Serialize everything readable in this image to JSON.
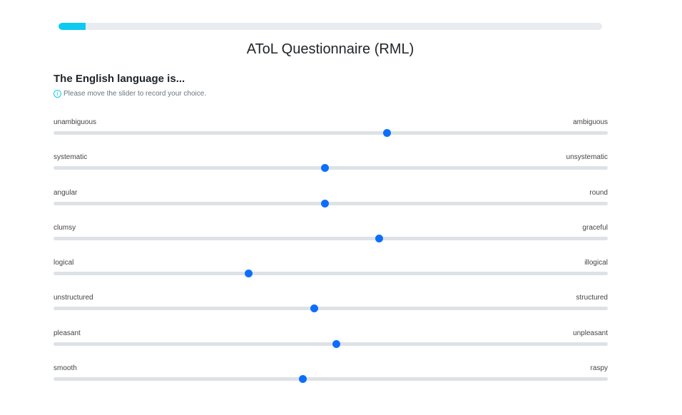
{
  "progress": {
    "value": 0.05,
    "color": "#0dcaf0"
  },
  "page_title": "AToL Questionnaire (RML)",
  "question": "The English language is...",
  "hint": {
    "icon": "info-icon",
    "text": "Please move the slider to record your choice."
  },
  "sliders": [
    {
      "left": "unambiguous",
      "right": "ambiguous",
      "value": 0.602
    },
    {
      "left": "systematic",
      "right": "unsystematic",
      "value": 0.49
    },
    {
      "left": "angular",
      "right": "round",
      "value": 0.49
    },
    {
      "left": "clumsy",
      "right": "graceful",
      "value": 0.587
    },
    {
      "left": "logical",
      "right": "illogical",
      "value": 0.352
    },
    {
      "left": "unstructured",
      "right": "structured",
      "value": 0.47
    },
    {
      "left": "pleasant",
      "right": "unpleasant",
      "value": 0.51
    },
    {
      "left": "smooth",
      "right": "raspy",
      "value": 0.45
    }
  ],
  "colors": {
    "thumb": "#0d6efd",
    "track": "#dee2e6",
    "progress": "#0dcaf0"
  }
}
